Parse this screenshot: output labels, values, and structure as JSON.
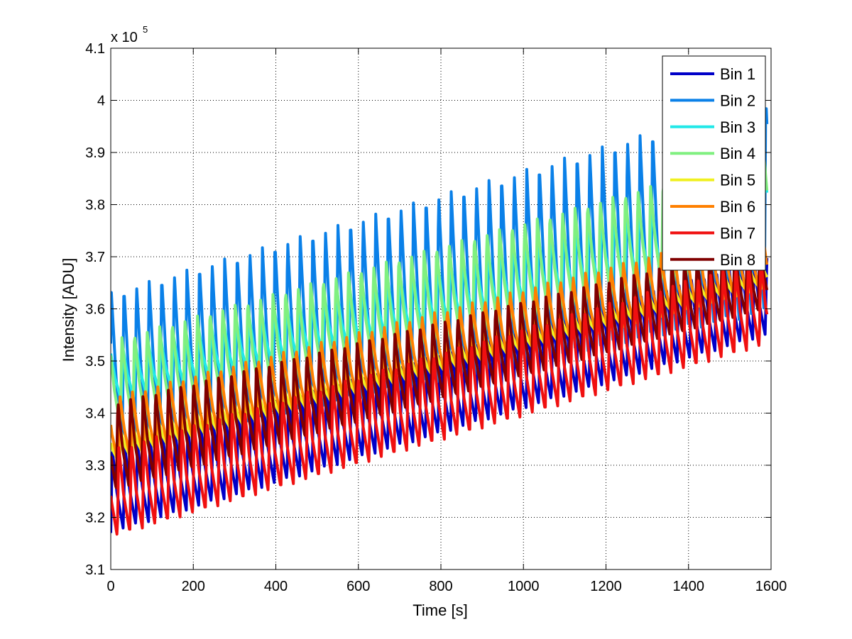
{
  "chart_data": {
    "type": "line",
    "xlabel": "Time [s]",
    "ylabel": "Intensity [ADU]",
    "y_exponent_base": "x 10",
    "y_exponent_power": "5",
    "xlim": [
      0,
      1600
    ],
    "ylim": [
      310000,
      410000
    ],
    "x_ticks": [
      0,
      200,
      400,
      600,
      800,
      1000,
      1200,
      1400,
      1600
    ],
    "x_tick_labels": [
      "0",
      "200",
      "400",
      "600",
      "800",
      "1000",
      "1200",
      "1400",
      "1600"
    ],
    "y_ticks": [
      310000,
      320000,
      330000,
      340000,
      350000,
      360000,
      370000,
      380000,
      390000,
      400000,
      410000
    ],
    "y_tick_labels": [
      "3.1",
      "3.2",
      "3.3",
      "3.4",
      "3.5",
      "3.6",
      "3.7",
      "3.8",
      "3.9",
      "4",
      "4.1"
    ],
    "grid": true,
    "legend_position": "top-right",
    "oscillation_period_s": 30.5,
    "series": [
      {
        "name": "Bin 1",
        "color": "#0000c8",
        "x": [
          0,
          1590
        ],
        "upper": [
          333000,
          370000
        ],
        "lower": [
          317000,
          355000
        ]
      },
      {
        "name": "Bin 2",
        "color": "#0a80e8",
        "x": [
          0,
          1590
        ],
        "upper": [
          363500,
          401000
        ],
        "lower": [
          333000,
          359000
        ]
      },
      {
        "name": "Bin 3",
        "color": "#22e8e8",
        "x": [
          0,
          1590
        ],
        "upper": [
          352000,
          386000
        ],
        "lower": [
          342000,
          371000
        ]
      },
      {
        "name": "Bin 4",
        "color": "#80f080",
        "x": [
          0,
          1590
        ],
        "upper": [
          354000,
          390000
        ],
        "lower": [
          337000,
          370000
        ]
      },
      {
        "name": "Bin 5",
        "color": "#f0f020",
        "x": [
          0,
          1590
        ],
        "upper": [
          336000,
          368000
        ],
        "lower": [
          330000,
          364000
        ]
      },
      {
        "name": "Bin 6",
        "color": "#ff8000",
        "x": [
          0,
          1590
        ],
        "upper": [
          343000,
          376000
        ],
        "lower": [
          330000,
          363000
        ]
      },
      {
        "name": "Bin 7",
        "color": "#f01010",
        "x": [
          0,
          1590
        ],
        "upper": [
          333000,
          370000
        ],
        "lower": [
          316000,
          353000
        ]
      },
      {
        "name": "Bin 8",
        "color": "#800000",
        "x": [
          0,
          1590
        ],
        "upper": [
          342000,
          373000
        ],
        "lower": [
          325000,
          360000
        ]
      }
    ]
  }
}
